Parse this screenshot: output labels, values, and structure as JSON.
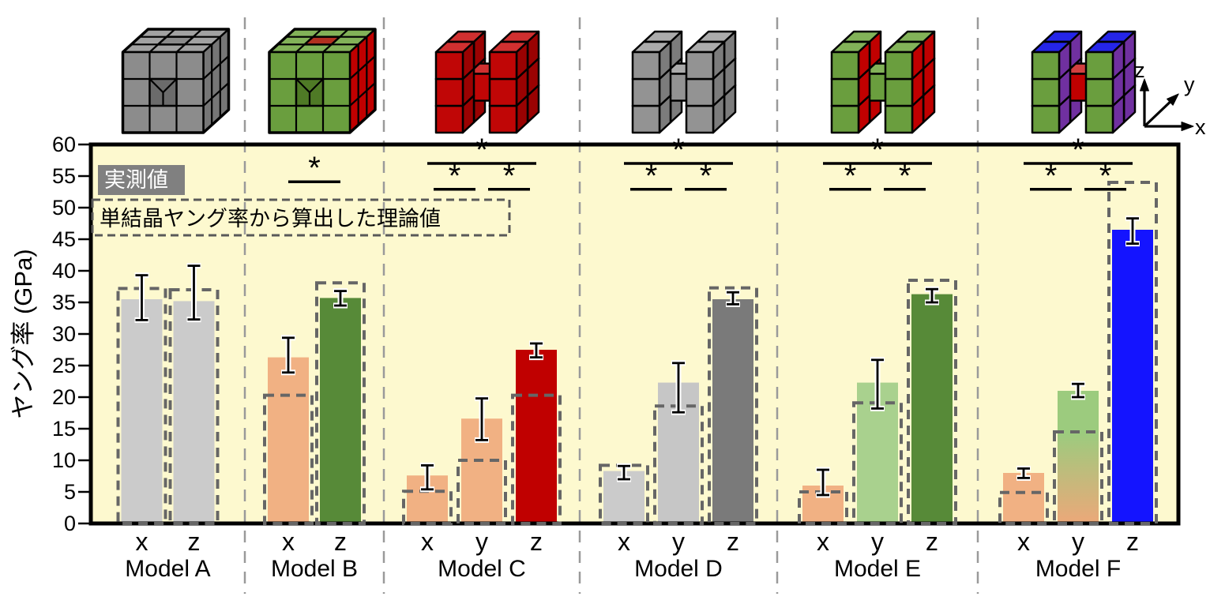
{
  "figure": {
    "plot_bg": "#FDF9CF",
    "border_color": "#000000",
    "separator_color": "#9a9a9a",
    "dashed_box_color": "#666666",
    "legend_bg": "#808080"
  },
  "legend": {
    "measured_label": "実測値",
    "theory_label": "単結晶ヤング率から算出した理論値"
  },
  "axes": {
    "y_title": "ヤング率 (GPa)",
    "y_min": 0,
    "y_max": 60,
    "y_step": 5,
    "y_ticks": [
      0,
      5,
      10,
      15,
      20,
      25,
      30,
      35,
      40,
      45,
      50,
      55,
      60
    ]
  },
  "axis_triad": {
    "x_label": "x",
    "y_label": "y",
    "z_label": "z"
  },
  "chart_data": {
    "type": "bar",
    "title": "",
    "xlabel": "",
    "ylabel": "ヤング率 (GPa)",
    "ylim": [
      0,
      60
    ],
    "grid": false,
    "sig_symbol": "*",
    "legend_position": "top-left",
    "models": [
      {
        "name": "Model A",
        "cube": {
          "type": "block",
          "front": "#8C8C8C",
          "top": "#A2A2A2",
          "side": "#767676",
          "hole": "#6B6B6B",
          "hole_top": "#8a8a8a"
        },
        "bars": [
          {
            "dir": "x",
            "measured": 35.5,
            "err_lo": 32.2,
            "err_hi": 39.3,
            "theory": 37.2,
            "color": "#CBCBCB"
          },
          {
            "dir": "z",
            "measured": 35.2,
            "err_lo": 32.3,
            "err_hi": 40.8,
            "theory": 37.0,
            "color": "#CBCBCB"
          }
        ],
        "sig": []
      },
      {
        "name": "Model B",
        "cube": {
          "type": "block",
          "front": "#6A9E3E",
          "top": "#82B258",
          "side": "#C00000",
          "hole": "#4F7A26",
          "hole_top": "#B03020"
        },
        "bars": [
          {
            "dir": "x",
            "measured": 26.3,
            "err_lo": 23.9,
            "err_hi": 29.4,
            "theory": 20.3,
            "color": "#F1B183"
          },
          {
            "dir": "z",
            "measured": 35.7,
            "err_lo": 34.5,
            "err_hi": 36.8,
            "theory": 38.1,
            "color": "#578A38"
          }
        ],
        "sig": [
          {
            "a": 0,
            "b": 1,
            "gpa": 54.1
          }
        ]
      },
      {
        "name": "Model C",
        "cube": {
          "type": "h",
          "front": "#C00606",
          "top": "#D03030",
          "side": "#9A0202",
          "center_front": "#C00606",
          "center_top": "#D03030"
        },
        "bars": [
          {
            "dir": "x",
            "measured": 7.6,
            "err_lo": 5.4,
            "err_hi": 9.2,
            "theory": 5.1,
            "color": "#F1B183"
          },
          {
            "dir": "y",
            "measured": 16.6,
            "err_lo": 13.2,
            "err_hi": 19.8,
            "theory": 10.0,
            "color": "#F1B183"
          },
          {
            "dir": "z",
            "measured": 27.5,
            "err_lo": 26.3,
            "err_hi": 28.5,
            "theory": 20.3,
            "color": "#C00000"
          }
        ],
        "sig": [
          {
            "a": 0,
            "b": 2,
            "gpa": 57.0
          },
          {
            "a": 0,
            "b": 1,
            "gpa": 52.9
          },
          {
            "a": 1,
            "b": 2,
            "gpa": 52.9
          }
        ]
      },
      {
        "name": "Model D",
        "cube": {
          "type": "h",
          "front": "#939393",
          "top": "#ABABAB",
          "side": "#7C7C7C",
          "center_front": "#939393",
          "center_top": "#ABABAB"
        },
        "bars": [
          {
            "dir": "x",
            "measured": 8.3,
            "err_lo": 7.0,
            "err_hi": 9.1,
            "theory": 9.2,
            "color": "#CBCBCB"
          },
          {
            "dir": "y",
            "measured": 22.3,
            "err_lo": 17.6,
            "err_hi": 25.4,
            "theory": 18.6,
            "color": "#C6C6C6"
          },
          {
            "dir": "z",
            "measured": 35.5,
            "err_lo": 34.7,
            "err_hi": 36.6,
            "theory": 37.3,
            "color": "#7A7A7A"
          }
        ],
        "sig": [
          {
            "a": 0,
            "b": 2,
            "gpa": 57.0
          },
          {
            "a": 0,
            "b": 1,
            "gpa": 52.9
          },
          {
            "a": 1,
            "b": 2,
            "gpa": 52.9
          }
        ]
      },
      {
        "name": "Model E",
        "cube": {
          "type": "h",
          "front": "#6A9E3E",
          "top": "#82B258",
          "side": "#C00000",
          "center_front": "#6A9E3E",
          "center_top": "#82B258"
        },
        "bars": [
          {
            "dir": "x",
            "measured": 6.0,
            "err_lo": 4.5,
            "err_hi": 8.5,
            "theory": 5.0,
            "color": "#F1B183"
          },
          {
            "dir": "y",
            "measured": 22.3,
            "err_lo": 18.2,
            "err_hi": 25.9,
            "theory": 19.1,
            "color": "#A9D18E"
          },
          {
            "dir": "z",
            "measured": 36.3,
            "err_lo": 35.0,
            "err_hi": 37.1,
            "theory": 38.5,
            "color": "#578A38"
          }
        ],
        "sig": [
          {
            "a": 0,
            "b": 2,
            "gpa": 57.0
          },
          {
            "a": 0,
            "b": 1,
            "gpa": 52.9
          },
          {
            "a": 1,
            "b": 2,
            "gpa": 52.9
          }
        ]
      },
      {
        "name": "Model F",
        "cube": {
          "type": "h",
          "front": "#6A9E3E",
          "top": "#2525E8",
          "side": "#7030A0",
          "center_front": "#C00000",
          "center_top": "#D24040"
        },
        "bars": [
          {
            "dir": "x",
            "measured": 8.0,
            "err_lo": 7.2,
            "err_hi": 8.7,
            "theory": 4.9,
            "color": "#F1B183"
          },
          {
            "dir": "y",
            "measured": 21.0,
            "err_lo": 20.0,
            "err_hi": 22.1,
            "theory": 14.5,
            "color": {
              "from": "#9CCB7E",
              "to": "#ECA879"
            }
          },
          {
            "dir": "z",
            "measured": 46.5,
            "err_lo": 44.3,
            "err_hi": 48.3,
            "theory": 54.0,
            "color": "#1414FF"
          }
        ],
        "sig": [
          {
            "a": 0,
            "b": 2,
            "gpa": 57.0
          },
          {
            "a": 0,
            "b": 1,
            "gpa": 52.9
          },
          {
            "a": 1,
            "b": 2,
            "gpa": 52.9
          }
        ]
      }
    ]
  }
}
